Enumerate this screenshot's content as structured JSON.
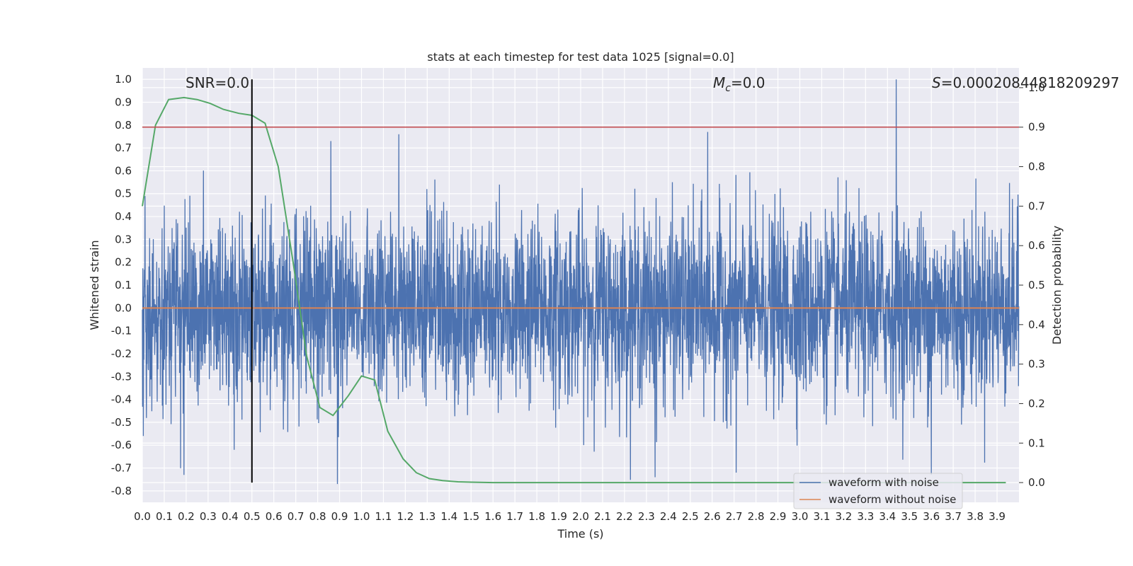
{
  "chart_data": {
    "type": "line",
    "title": "stats at each timestep for test data 1025 [signal=0.0]",
    "xlabel": "Time (s)",
    "ylabel": "Whitened strain",
    "ylabel_right": "Detection probability",
    "xlim": [
      0.0,
      4.0
    ],
    "ylim": [
      -0.85,
      1.05
    ],
    "ylim_right": [
      -0.05,
      1.05
    ],
    "x_ticks": [
      "0.0",
      "0.1",
      "0.2",
      "0.3",
      "0.4",
      "0.5",
      "0.6",
      "0.7",
      "0.8",
      "0.9",
      "1.0",
      "1.1",
      "1.2",
      "1.3",
      "1.4",
      "1.5",
      "1.6",
      "1.7",
      "1.8",
      "1.9",
      "2.0",
      "2.1",
      "2.2",
      "2.3",
      "2.4",
      "2.5",
      "2.6",
      "2.7",
      "2.8",
      "2.9",
      "3.0",
      "3.1",
      "3.2",
      "3.3",
      "3.4",
      "3.5",
      "3.6",
      "3.7",
      "3.8",
      "3.9"
    ],
    "y_ticks": [
      "-0.8",
      "-0.7",
      "-0.6",
      "-0.5",
      "-0.4",
      "-0.3",
      "-0.2",
      "-0.1",
      "0.0",
      "0.1",
      "0.2",
      "0.3",
      "0.4",
      "0.5",
      "0.6",
      "0.7",
      "0.8",
      "0.9",
      "1.0"
    ],
    "y_ticks_right": [
      "0.0",
      "0.1",
      "0.2",
      "0.3",
      "0.4",
      "0.5",
      "0.6",
      "0.7",
      "0.8",
      "0.9",
      "1.0"
    ],
    "grid": true,
    "legend_position": "bottom-right",
    "annotations": {
      "snr": "SNR=0.0",
      "mc_symbol": "M",
      "mc_subscript": "c",
      "mc_value": "=0.0",
      "s_symbol": "S",
      "s_value": "=0.00020844818209297"
    },
    "vertical_marker_x": 0.5,
    "threshold_probability": 0.9,
    "series": [
      {
        "name": "waveform with noise",
        "color": "#4c72b0",
        "amplitude_range": [
          -0.77,
          1.0
        ],
        "peaks": [
          {
            "x": 0.86,
            "y": 0.73
          },
          {
            "x": 1.17,
            "y": 0.76
          },
          {
            "x": 2.58,
            "y": 0.77
          },
          {
            "x": 3.44,
            "y": 1.0
          },
          {
            "x": 0.89,
            "y": -0.77
          },
          {
            "x": 0.19,
            "y": -0.73
          },
          {
            "x": 2.34,
            "y": -0.74
          },
          {
            "x": 3.6,
            "y": -0.73
          },
          {
            "x": 2.71,
            "y": -0.72
          }
        ]
      },
      {
        "name": "waveform without noise",
        "color": "#dd8452",
        "constant_value": 0.0
      },
      {
        "name": "detection probability",
        "color": "#55a868",
        "axis": "right",
        "x": [
          0.0,
          0.06,
          0.12,
          0.19,
          0.25,
          0.31,
          0.37,
          0.44,
          0.5,
          0.56,
          0.62,
          0.69,
          0.75,
          0.81,
          0.87,
          0.94,
          1.0,
          1.06,
          1.12,
          1.19,
          1.25,
          1.31,
          1.37,
          1.44,
          1.5,
          1.6,
          2.0,
          3.0,
          3.94
        ],
        "y": [
          0.7,
          0.905,
          0.97,
          0.975,
          0.97,
          0.96,
          0.945,
          0.935,
          0.93,
          0.91,
          0.8,
          0.55,
          0.32,
          0.19,
          0.17,
          0.22,
          0.27,
          0.26,
          0.13,
          0.06,
          0.025,
          0.01,
          0.005,
          0.002,
          0.001,
          0.0,
          0.0,
          0.0,
          0.0
        ]
      }
    ]
  }
}
